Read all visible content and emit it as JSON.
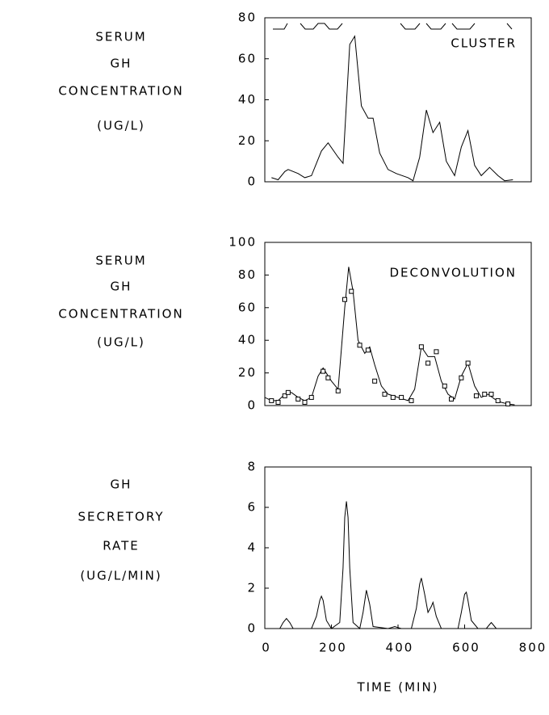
{
  "chart_data": [
    {
      "type": "line",
      "ylabel": [
        "SERUM",
        "GH",
        "CONCENTRATION",
        "(UG/L)"
      ],
      "annotation": "CLUSTER",
      "xlim": [
        0,
        800
      ],
      "ylim": [
        0,
        80
      ],
      "yticks": [
        0,
        20,
        40,
        60,
        80
      ],
      "series": [
        {
          "color": "#000000",
          "x": [
            20,
            40,
            60,
            70,
            100,
            120,
            140,
            170,
            190,
            220,
            235,
            255,
            270,
            290,
            310,
            325,
            345,
            370,
            395,
            430,
            445,
            465,
            485,
            505,
            525,
            545,
            570,
            590,
            610,
            630,
            650,
            675,
            700,
            720,
            745
          ],
          "values": [
            2,
            1,
            5,
            6,
            4,
            2,
            3,
            15,
            19,
            12,
            9,
            67,
            71,
            37,
            31,
            31,
            14,
            6,
            4,
            2,
            0.5,
            12,
            35,
            24,
            29,
            10,
            3,
            17,
            25,
            8,
            3,
            7,
            3,
            0.5,
            1
          ]
        }
      ]
    },
    {
      "type": "line",
      "ylabel": [
        "SERUM",
        "GH",
        "CONCENTRATION",
        "(UG/L)"
      ],
      "annotation": "DECONVOLUTION",
      "xlim": [
        0,
        800
      ],
      "ylim": [
        0,
        100
      ],
      "yticks": [
        0,
        20,
        40,
        60,
        80,
        100
      ],
      "series": [
        {
          "color": "#000000",
          "x": [
            0,
            20,
            40,
            60,
            80,
            100,
            120,
            140,
            160,
            175,
            200,
            220,
            240,
            252,
            265,
            280,
            300,
            315,
            330,
            350,
            370,
            400,
            430,
            450,
            470,
            490,
            510,
            530,
            550,
            570,
            590,
            610,
            630,
            650,
            670,
            690,
            710,
            730,
            750
          ],
          "values": [
            5,
            3,
            3,
            7,
            8,
            5,
            3,
            5,
            18,
            23,
            15,
            10,
            60,
            85,
            70,
            40,
            32,
            36,
            25,
            12,
            7,
            5,
            3,
            10,
            36,
            30,
            30,
            15,
            7,
            4,
            18,
            26,
            12,
            5,
            7,
            4,
            2,
            1,
            0.5
          ]
        },
        {
          "color": "#000000",
          "marker": "square",
          "line": false,
          "x": [
            20,
            40,
            60,
            70,
            100,
            120,
            140,
            175,
            190,
            220,
            240,
            260,
            285,
            310,
            330,
            360,
            385,
            410,
            440,
            470,
            490,
            515,
            540,
            560,
            590,
            610,
            635,
            660,
            680,
            700,
            730
          ],
          "values": [
            3,
            2,
            6,
            8,
            4,
            2,
            5,
            21,
            17,
            9,
            65,
            70,
            37,
            34,
            15,
            7,
            5,
            5,
            3,
            36,
            26,
            33,
            12,
            4,
            17,
            26,
            6,
            7,
            7,
            3,
            1
          ]
        }
      ]
    },
    {
      "type": "line",
      "ylabel": [
        "GH",
        "SECRETORY",
        "RATE",
        "(UG/L/MIN)"
      ],
      "xlabel": "TIME (MIN)",
      "xlim": [
        0,
        800
      ],
      "xticks": [
        0,
        200,
        400,
        600,
        800
      ],
      "ylim": [
        0,
        8
      ],
      "yticks": [
        0,
        2,
        4,
        6,
        8
      ],
      "series": [
        {
          "color": "#000000",
          "x": [
            0,
            45,
            55,
            65,
            75,
            85,
            140,
            155,
            165,
            170,
            175,
            185,
            200,
            225,
            235,
            240,
            245,
            250,
            255,
            265,
            285,
            295,
            305,
            315,
            325,
            370,
            380,
            390,
            400,
            410,
            440,
            455,
            465,
            470,
            480,
            490,
            500,
            505,
            515,
            530,
            580,
            590,
            600,
            605,
            610,
            620,
            640,
            665,
            675,
            680,
            685,
            695,
            750
          ],
          "values": [
            0,
            0,
            0.3,
            0.5,
            0.3,
            0,
            0,
            0.6,
            1.4,
            1.6,
            1.4,
            0.4,
            0,
            0.3,
            3,
            5.5,
            6.3,
            5.5,
            3,
            0.3,
            0,
            0.8,
            1.9,
            1.2,
            0.1,
            0,
            0.05,
            0.1,
            0.05,
            0,
            0,
            1,
            2.2,
            2.5,
            1.7,
            0.8,
            1.1,
            1.3,
            0.6,
            0,
            0,
            0.8,
            1.7,
            1.8,
            1.4,
            0.4,
            0,
            0,
            0.2,
            0.3,
            0.2,
            0,
            0
          ]
        }
      ]
    }
  ]
}
